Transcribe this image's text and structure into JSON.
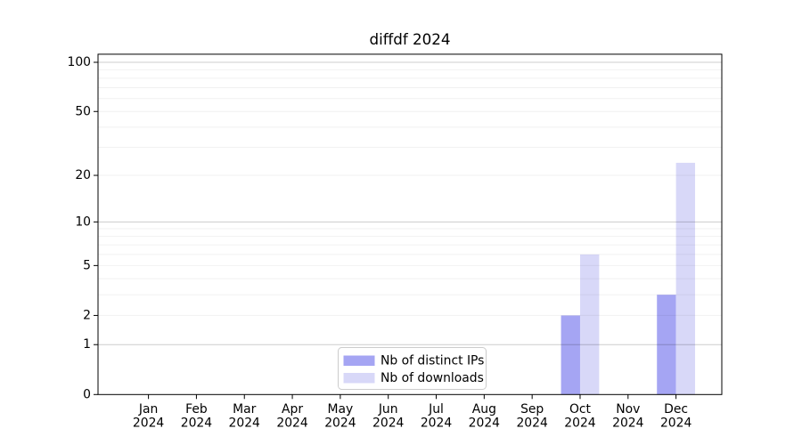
{
  "chart_data": {
    "type": "bar",
    "title": "diffdf 2024",
    "year_label": "2024",
    "categories": [
      "Jan",
      "Feb",
      "Mar",
      "Apr",
      "May",
      "Jun",
      "Jul",
      "Aug",
      "Sep",
      "Oct",
      "Nov",
      "Dec"
    ],
    "series": [
      {
        "name": "Nb of distinct IPs",
        "color": "#a5a5f3",
        "values": [
          0,
          0,
          0,
          0,
          0,
          0,
          0,
          0,
          0,
          2,
          0,
          3
        ]
      },
      {
        "name": "Nb of downloads",
        "color": "#d8d8f8",
        "values": [
          0,
          0,
          0,
          0,
          0,
          0,
          0,
          0,
          0,
          6,
          0,
          24
        ]
      }
    ],
    "xlabel": "",
    "ylabel": "",
    "yscale": "log1p",
    "ylim": [
      0,
      112
    ],
    "yticks": [
      0,
      1,
      2,
      5,
      10,
      20,
      50,
      100
    ],
    "gridlines": {
      "major": [
        1,
        10,
        100
      ],
      "minor": [
        2,
        3,
        4,
        5,
        6,
        7,
        8,
        9,
        20,
        30,
        40,
        50,
        60,
        70,
        80,
        90
      ]
    },
    "legend": {
      "position": "lower center"
    },
    "colors": {
      "axis": "#000000",
      "grid_major": "rgba(0,0,0,0.20)",
      "grid_minor": "rgba(0,0,0,0.055)",
      "legend_border": "#cccccc",
      "background": "#ffffff"
    }
  }
}
